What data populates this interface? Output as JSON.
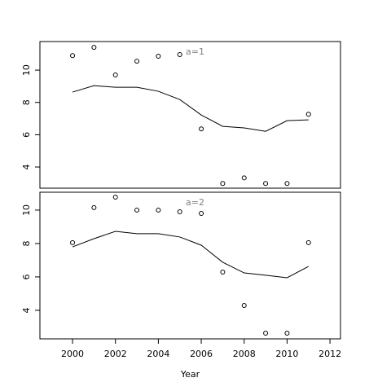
{
  "chart_data": [
    {
      "type": "scatter-line",
      "annotation": "a=1",
      "x": [
        2000,
        2001,
        2002,
        2003,
        2004,
        2005,
        2006,
        2007,
        2008,
        2009,
        2010,
        2011
      ],
      "xlim": [
        1998.48,
        2012.49
      ],
      "series": [
        {
          "style": "points",
          "color": "#000000",
          "values": [
            10.9,
            11.41,
            9.7,
            10.55,
            10.86,
            10.96,
            6.36,
            2.98,
            3.33,
            2.98,
            2.98,
            7.27
          ]
        },
        {
          "style": "line",
          "color": "#000000",
          "values": [
            8.64,
            9.04,
            8.94,
            8.94,
            8.69,
            8.18,
            7.22,
            6.52,
            6.42,
            6.21,
            6.87,
            6.92
          ]
        }
      ],
      "ylim": [
        2.69,
        11.77
      ],
      "yticks": [
        4,
        6,
        8,
        10
      ]
    },
    {
      "type": "scatter-line",
      "annotation": "a=2",
      "xlabel": "Year",
      "x": [
        2000,
        2001,
        2002,
        2003,
        2004,
        2005,
        2006,
        2007,
        2008,
        2009,
        2010,
        2011
      ],
      "xlim": [
        1998.48,
        2012.49
      ],
      "xticks": [
        2000,
        2002,
        2004,
        2006,
        2008,
        2010,
        2012
      ],
      "series": [
        {
          "style": "points",
          "color": "#000000",
          "values": [
            8.05,
            10.15,
            10.78,
            10,
            10,
            9.9,
            9.8,
            6.29,
            4.29,
            2.63,
            2.63,
            8.05
          ]
        },
        {
          "style": "line",
          "color": "#000000",
          "values": [
            7.8,
            8.29,
            8.73,
            8.59,
            8.59,
            8.39,
            7.9,
            6.88,
            6.24,
            6.1,
            5.95,
            6.63
          ]
        }
      ],
      "ylim": [
        2.29,
        11.07
      ],
      "yticks": [
        4,
        6,
        8,
        10
      ]
    }
  ]
}
